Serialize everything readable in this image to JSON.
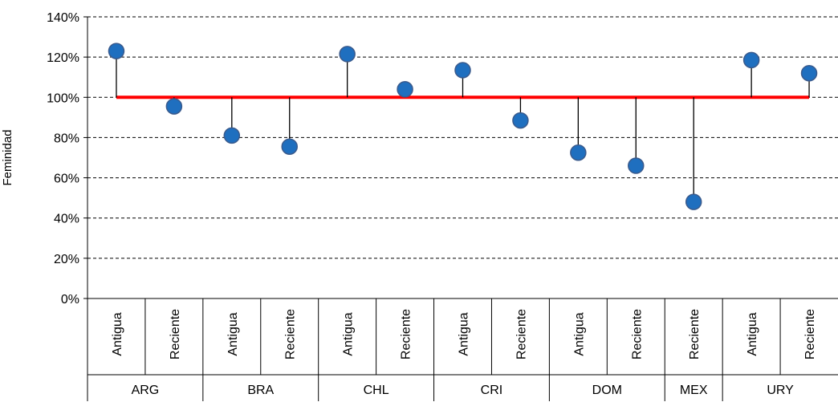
{
  "chart_data": {
    "type": "scatter",
    "ylabel": "Feminidad",
    "ylim": [
      0,
      140
    ],
    "yticks": [
      0,
      20,
      40,
      60,
      80,
      100,
      120,
      140
    ],
    "ytick_labels": [
      "0%",
      "20%",
      "40%",
      "60%",
      "80%",
      "100%",
      "120%",
      "140%"
    ],
    "grid": "horizontal dashed",
    "reference_line": 100,
    "groups": [
      {
        "label": "ARG",
        "categories": [
          "Antigua",
          "Reciente"
        ],
        "values": [
          123,
          95.5
        ]
      },
      {
        "label": "BRA",
        "categories": [
          "Antigua",
          "Reciente"
        ],
        "values": [
          81,
          75.5
        ]
      },
      {
        "label": "CHL",
        "categories": [
          "Antigua",
          "Reciente"
        ],
        "values": [
          121.5,
          104
        ]
      },
      {
        "label": "CRI",
        "categories": [
          "Antigua",
          "Reciente"
        ],
        "values": [
          113.5,
          88.5
        ]
      },
      {
        "label": "DOM",
        "categories": [
          "Antigua",
          "Reciente"
        ],
        "values": [
          72.5,
          66
        ]
      },
      {
        "label": "MEX",
        "categories": [
          "Reciente"
        ],
        "values": [
          48
        ]
      },
      {
        "label": "URY",
        "categories": [
          "Antigua",
          "Reciente"
        ],
        "values": [
          118.5,
          112
        ]
      }
    ],
    "colors": {
      "point": "#1F6FBF",
      "point_edge": "#3A5A8C",
      "reference_line": "#FF0000",
      "stem": "#000000",
      "grid": "#000000"
    }
  }
}
